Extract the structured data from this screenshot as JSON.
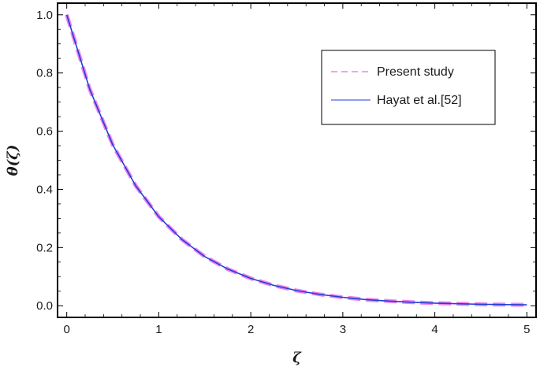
{
  "chart_data": {
    "type": "line",
    "xlabel": "ζ",
    "ylabel": "θ(ζ)",
    "xlim": [
      -0.1,
      5.1
    ],
    "ylim": [
      -0.04,
      1.04
    ],
    "x_ticks": [
      0,
      1,
      2,
      3,
      4,
      5
    ],
    "x_tick_labels": [
      "0",
      "1",
      "2",
      "3",
      "4",
      "5"
    ],
    "y_ticks": [
      0.0,
      0.2,
      0.4,
      0.6,
      0.8,
      1.0
    ],
    "y_tick_labels": [
      "0.0",
      "0.2",
      "0.4",
      "0.6",
      "0.8",
      "1.0"
    ],
    "grid": false,
    "legend_position": "top-right",
    "series": [
      {
        "name": "Present study",
        "color": "#ee82ee",
        "style": "dashed",
        "x": [
          0,
          0.25,
          0.5,
          0.75,
          1.0,
          1.25,
          1.5,
          1.75,
          2.0,
          2.25,
          2.5,
          2.75,
          3.0,
          3.25,
          3.5,
          3.75,
          4.0,
          4.25,
          4.5,
          4.75,
          5.0
        ],
        "y": [
          1.0,
          0.744,
          0.553,
          0.412,
          0.306,
          0.228,
          0.169,
          0.126,
          0.094,
          0.07,
          0.052,
          0.039,
          0.029,
          0.021,
          0.016,
          0.012,
          0.009,
          0.007,
          0.005,
          0.004,
          0.003
        ]
      },
      {
        "name": "Hayat et al.[52]",
        "color": "#1f3fd6",
        "style": "solid",
        "x": [
          0,
          0.25,
          0.5,
          0.75,
          1.0,
          1.25,
          1.5,
          1.75,
          2.0,
          2.25,
          2.5,
          2.75,
          3.0,
          3.25,
          3.5,
          3.75,
          4.0,
          4.25,
          4.5,
          4.75,
          5.0
        ],
        "y": [
          1.0,
          0.744,
          0.553,
          0.412,
          0.306,
          0.228,
          0.169,
          0.126,
          0.094,
          0.07,
          0.052,
          0.039,
          0.029,
          0.021,
          0.016,
          0.012,
          0.009,
          0.007,
          0.005,
          0.004,
          0.003
        ]
      }
    ]
  }
}
